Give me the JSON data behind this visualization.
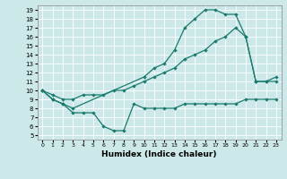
{
  "xlabel": "Humidex (Indice chaleur)",
  "xlim": [
    -0.5,
    23.5
  ],
  "ylim": [
    4.5,
    19.5
  ],
  "xticks": [
    0,
    1,
    2,
    3,
    4,
    5,
    6,
    7,
    8,
    9,
    10,
    11,
    12,
    13,
    14,
    15,
    16,
    17,
    18,
    19,
    20,
    21,
    22,
    23
  ],
  "yticks": [
    5,
    6,
    7,
    8,
    9,
    10,
    11,
    12,
    13,
    14,
    15,
    16,
    17,
    18,
    19
  ],
  "bg_color": "#cde8e8",
  "line_color": "#1a7a6e",
  "line1_x": [
    0,
    1,
    2,
    3,
    4,
    5,
    6,
    7,
    8,
    9,
    10,
    11,
    12,
    13,
    14,
    15,
    16,
    17,
    18,
    19,
    20,
    21,
    22,
    23
  ],
  "line1_y": [
    10.0,
    9.0,
    8.5,
    7.5,
    7.5,
    7.5,
    6.0,
    5.5,
    5.5,
    8.5,
    8.0,
    8.0,
    8.0,
    8.0,
    8.5,
    8.5,
    8.5,
    8.5,
    8.5,
    8.5,
    9.0,
    9.0,
    9.0,
    9.0
  ],
  "line2_x": [
    0,
    1,
    2,
    3,
    4,
    5,
    6,
    7,
    8,
    9,
    10,
    11,
    12,
    13,
    14,
    15,
    16,
    17,
    18,
    19,
    20,
    21,
    22,
    23
  ],
  "line2_y": [
    10.0,
    9.5,
    9.0,
    9.0,
    9.5,
    9.5,
    9.5,
    10.0,
    10.0,
    10.5,
    11.0,
    11.5,
    12.0,
    12.5,
    13.5,
    14.0,
    14.5,
    15.5,
    16.0,
    17.0,
    16.0,
    11.0,
    11.0,
    11.0
  ],
  "line3_x": [
    0,
    1,
    2,
    3,
    10,
    11,
    12,
    13,
    14,
    15,
    16,
    17,
    18,
    19,
    20,
    21,
    22,
    23
  ],
  "line3_y": [
    10.0,
    9.0,
    8.5,
    8.0,
    11.5,
    12.5,
    13.0,
    14.5,
    17.0,
    18.0,
    19.0,
    19.0,
    18.5,
    18.5,
    16.0,
    11.0,
    11.0,
    11.5
  ]
}
